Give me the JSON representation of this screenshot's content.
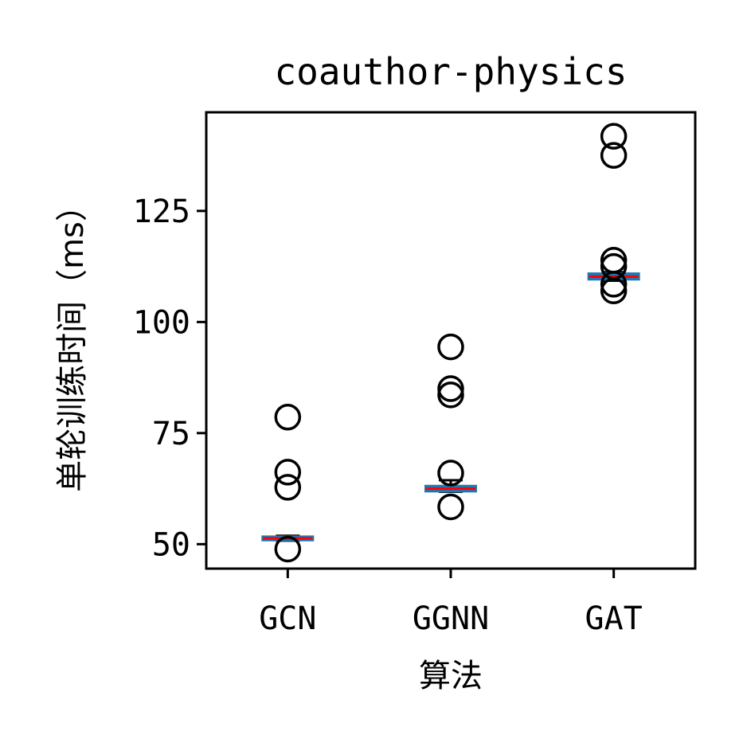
{
  "chart_data": {
    "type": "box",
    "title": "coauthor-physics",
    "xlabel": "算法",
    "ylabel": "单轮训练时间（ms）",
    "categories": [
      "GCN",
      "GGNN",
      "GAT"
    ],
    "ylim": [
      44.5,
      147.2
    ],
    "yticks": [
      50,
      75,
      100,
      125
    ],
    "grid": false,
    "legend": "none",
    "series": [
      {
        "category": "GCN",
        "q1": 51.0,
        "median": 51.3,
        "q3": 51.6,
        "whisker_low": 50.8,
        "whisker_high": 51.9,
        "outliers": [
          78.6,
          66.2,
          62.8,
          48.9
        ]
      },
      {
        "category": "GGNN",
        "q1": 62.0,
        "median": 62.5,
        "q3": 63.0,
        "whisker_low": 61.8,
        "whisker_high": 64.4,
        "outliers": [
          94.4,
          85.0,
          83.6,
          66.0,
          58.4
        ]
      },
      {
        "category": "GAT",
        "q1": 109.7,
        "median": 110.2,
        "q3": 110.8,
        "whisker_low": 109.3,
        "whisker_high": 111.2,
        "outliers": [
          141.8,
          137.5,
          113.9,
          112.5,
          108.5,
          107.0
        ]
      }
    ],
    "colors": {
      "box": "#1f77b4",
      "median": "#ff0000",
      "whisker": "#000000",
      "outlier": "#000000",
      "axes": "#000000"
    }
  }
}
